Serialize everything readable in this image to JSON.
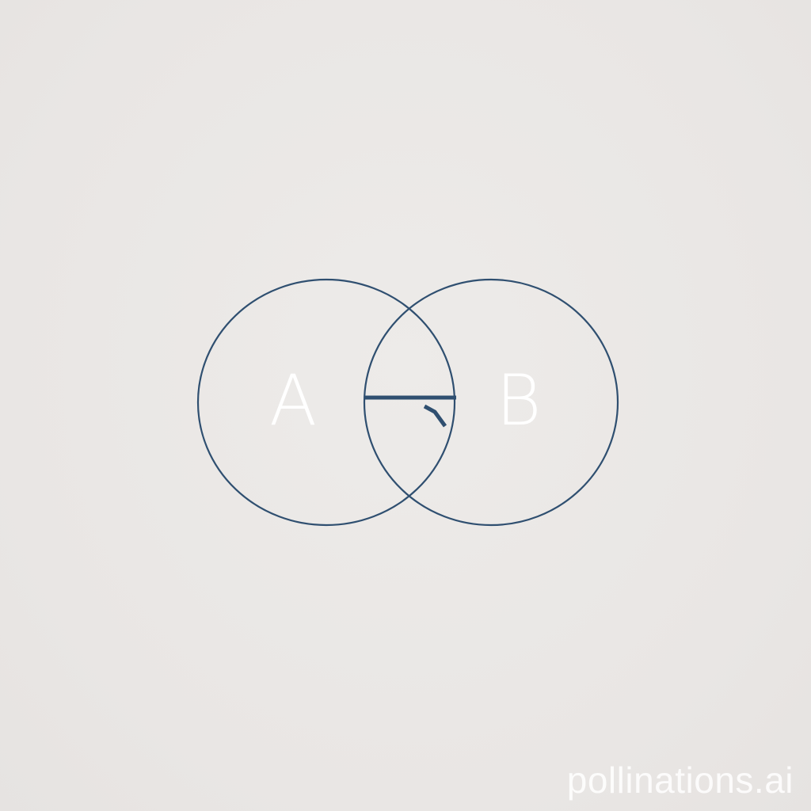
{
  "diagram": {
    "labels": {
      "a": "A",
      "b": "B"
    },
    "colors": {
      "outline": "#2f4f70",
      "label": "#ffffff",
      "background": "#ebe8e6"
    }
  },
  "watermark": {
    "text": "pollinations.ai"
  }
}
